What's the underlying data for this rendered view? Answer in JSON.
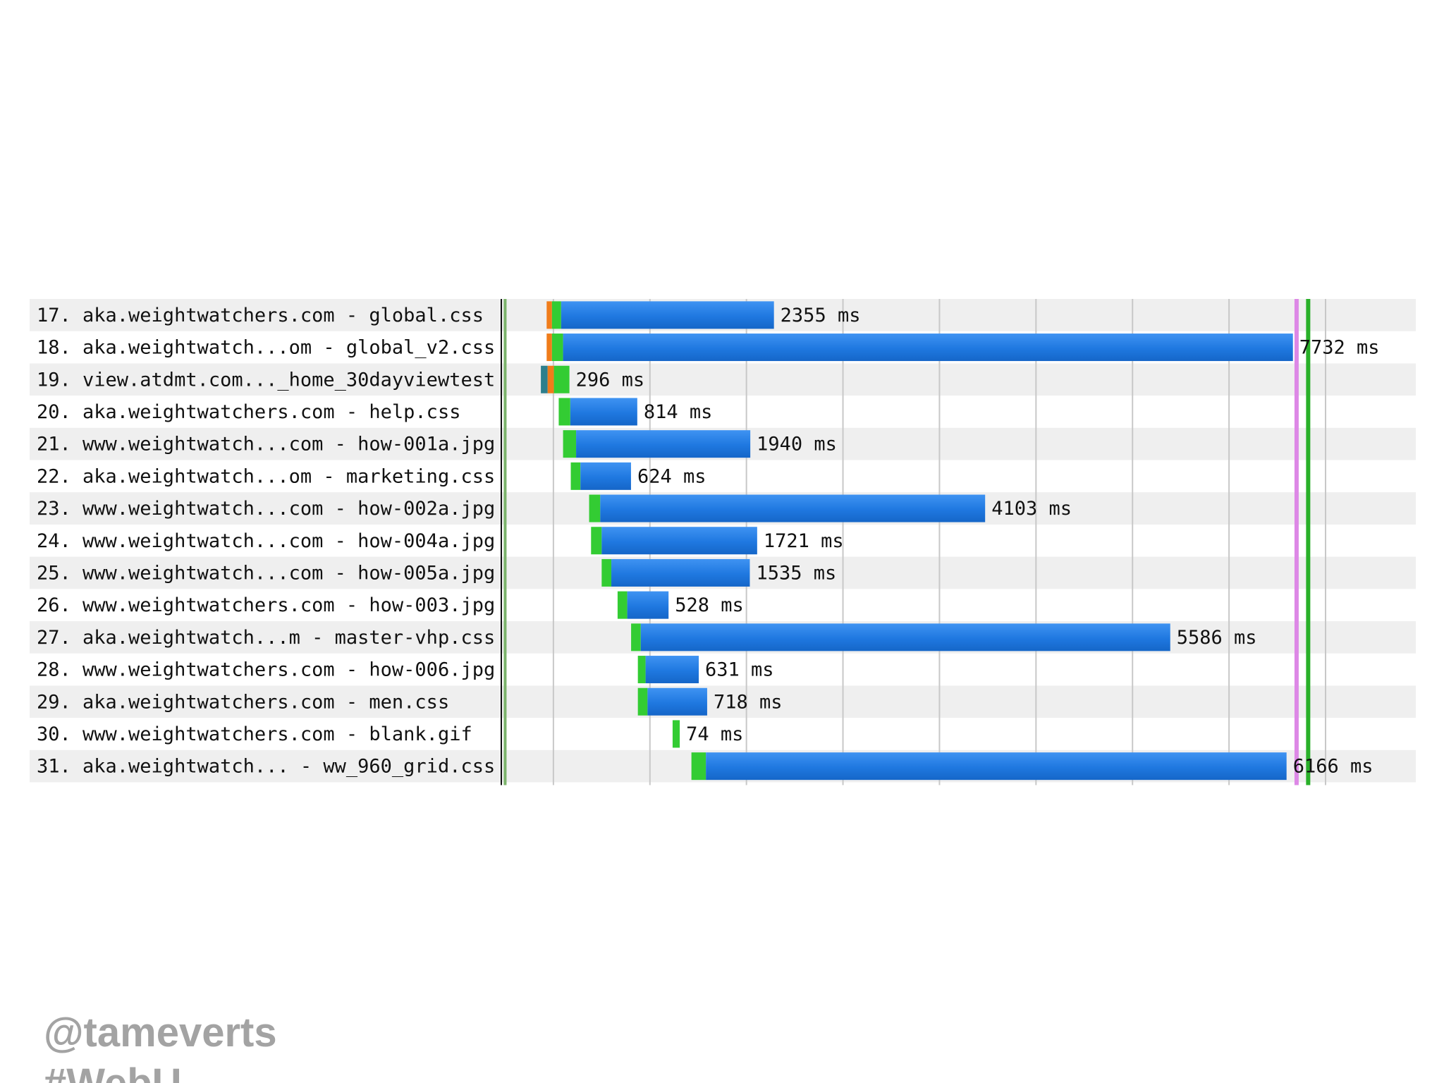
{
  "chart_data": {
    "type": "bar",
    "subtype": "waterfall",
    "unit": "ms",
    "rows": [
      {
        "index": "17.",
        "label": "aka.weightwatchers.com - global.css",
        "duration": "2355 ms",
        "value": 2355,
        "start": 430,
        "phases": [
          {
            "color": "#f07c1a",
            "value": 55
          },
          {
            "color": "#33cc33",
            "value": 95
          },
          {
            "color": "#1f78e0",
            "value": 2205
          }
        ]
      },
      {
        "index": "18.",
        "label": "aka.weightwatch...om - global_v2.css",
        "duration": "7732 ms",
        "value": 7732,
        "start": 430,
        "phases": [
          {
            "color": "#f07c1a",
            "value": 55
          },
          {
            "color": "#33cc33",
            "value": 115
          },
          {
            "color": "#1f78e0",
            "value": 7562
          }
        ]
      },
      {
        "index": "19.",
        "label": "view.atdmt.com..._home_30dayviewtest",
        "duration": "296 ms",
        "value": 296,
        "start": 370,
        "phases": [
          {
            "color": "#2e7f8c",
            "value": 70
          },
          {
            "color": "#f07c1a",
            "value": 65
          },
          {
            "color": "#33cc33",
            "value": 161
          }
        ]
      },
      {
        "index": "20.",
        "label": "aka.weightwatchers.com - help.css",
        "duration": "814 ms",
        "value": 814,
        "start": 555,
        "phases": [
          {
            "color": "#33cc33",
            "value": 120
          },
          {
            "color": "#1f78e0",
            "value": 694
          }
        ]
      },
      {
        "index": "21.",
        "label": "www.weightwatch...com - how-001a.jpg",
        "duration": "1940 ms",
        "value": 1940,
        "start": 600,
        "phases": [
          {
            "color": "#33cc33",
            "value": 135
          },
          {
            "color": "#1f78e0",
            "value": 1805
          }
        ]
      },
      {
        "index": "22.",
        "label": "aka.weightwatch...om - marketing.css",
        "duration": "624 ms",
        "value": 624,
        "start": 680,
        "phases": [
          {
            "color": "#33cc33",
            "value": 100
          },
          {
            "color": "#1f78e0",
            "value": 524
          }
        ]
      },
      {
        "index": "23.",
        "label": "www.weightwatch...com - how-002a.jpg",
        "duration": "4103 ms",
        "value": 4103,
        "start": 870,
        "phases": [
          {
            "color": "#33cc33",
            "value": 115
          },
          {
            "color": "#1f78e0",
            "value": 3988
          }
        ]
      },
      {
        "index": "24.",
        "label": "www.weightwatch...com - how-004a.jpg",
        "duration": "1721 ms",
        "value": 1721,
        "start": 890,
        "phases": [
          {
            "color": "#33cc33",
            "value": 110
          },
          {
            "color": "#1f78e0",
            "value": 1611
          }
        ]
      },
      {
        "index": "25.",
        "label": "www.weightwatch...com - how-005a.jpg",
        "duration": "1535 ms",
        "value": 1535,
        "start": 1000,
        "phases": [
          {
            "color": "#33cc33",
            "value": 100
          },
          {
            "color": "#1f78e0",
            "value": 1435
          }
        ]
      },
      {
        "index": "26.",
        "label": "www.weightwatchers.com - how-003.jpg",
        "duration": "528 ms",
        "value": 528,
        "start": 1165,
        "phases": [
          {
            "color": "#33cc33",
            "value": 100
          },
          {
            "color": "#1f78e0",
            "value": 428
          }
        ]
      },
      {
        "index": "27.",
        "label": "aka.weightwatch...m - master-vhp.css",
        "duration": "5586 ms",
        "value": 5586,
        "start": 1305,
        "phases": [
          {
            "color": "#33cc33",
            "value": 100
          },
          {
            "color": "#1f78e0",
            "value": 5486
          }
        ]
      },
      {
        "index": "28.",
        "label": "www.weightwatchers.com - how-006.jpg",
        "duration": "631 ms",
        "value": 631,
        "start": 1375,
        "phases": [
          {
            "color": "#33cc33",
            "value": 80
          },
          {
            "color": "#1f78e0",
            "value": 551
          }
        ]
      },
      {
        "index": "29.",
        "label": "aka.weightwatchers.com - men.css",
        "duration": "718 ms",
        "value": 718,
        "start": 1375,
        "phases": [
          {
            "color": "#33cc33",
            "value": 100
          },
          {
            "color": "#1f78e0",
            "value": 618
          }
        ]
      },
      {
        "index": "30.",
        "label": "www.weightwatchers.com - blank.gif",
        "duration": "74 ms",
        "value": 74,
        "start": 1735,
        "phases": [
          {
            "color": "#33cc33",
            "value": 74
          }
        ]
      },
      {
        "index": "31.",
        "label": "aka.weightwatch... - ww_960_grid.css",
        "duration": "6166 ms",
        "value": 6166,
        "start": 1930,
        "phases": [
          {
            "color": "#33cc33",
            "value": 150
          },
          {
            "color": "#1f78e0",
            "value": 6016
          }
        ]
      }
    ],
    "time_range": [
      -500,
      8500
    ],
    "gridlines": [
      500,
      1500,
      2500,
      3500,
      4500,
      5500,
      6500,
      7500,
      8500
    ],
    "markers": [
      {
        "value": 0,
        "color": "#7bb36b"
      },
      {
        "value": 8200,
        "color": "#dd88e6"
      },
      {
        "value": 8320,
        "color": "#29b029"
      }
    ],
    "colors": {
      "row_alt": "#efefef",
      "grid": "#c8c8c8",
      "divider": "#111111"
    }
  },
  "footer": {
    "handle": "@tameverts",
    "hashtag": "#WebU"
  }
}
